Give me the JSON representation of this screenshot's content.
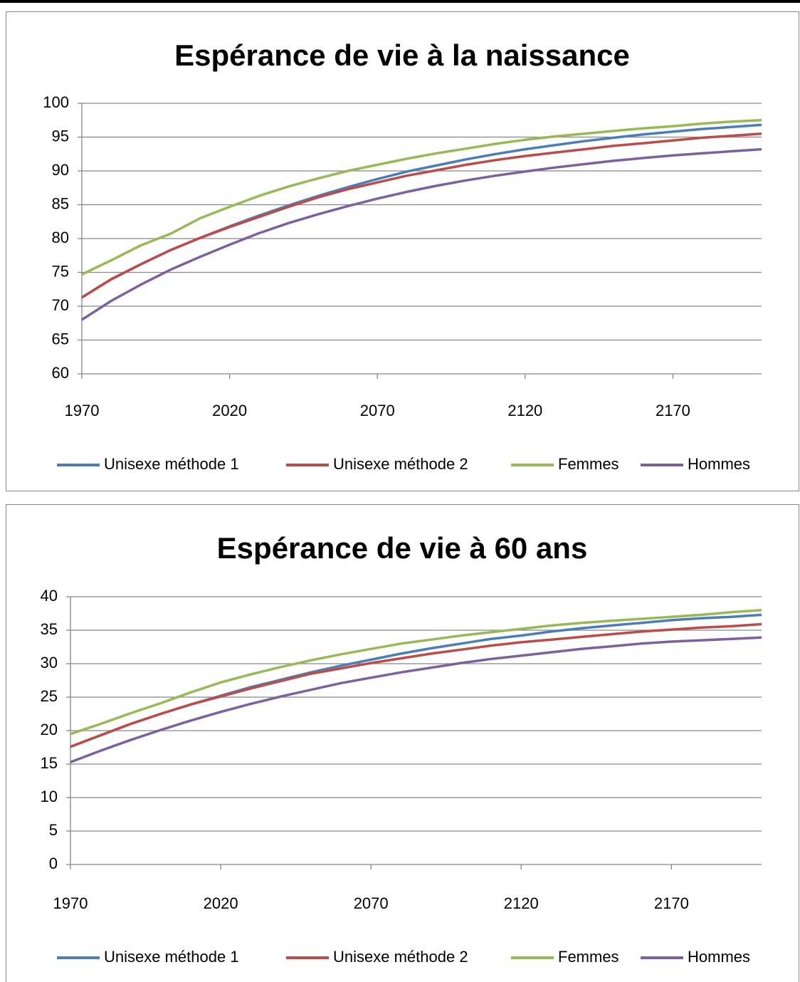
{
  "chart_data": [
    {
      "type": "line",
      "title": "Espérance de vie à la naissance",
      "x": [
        1970,
        1980,
        1990,
        2000,
        2010,
        2020,
        2030,
        2040,
        2050,
        2060,
        2070,
        2080,
        2090,
        2100,
        2110,
        2120,
        2130,
        2140,
        2150,
        2160,
        2170,
        2180,
        2190,
        2200
      ],
      "xlim": [
        1970,
        2200
      ],
      "xticks": [
        1970,
        2020,
        2070,
        2120,
        2170
      ],
      "ylim": [
        60,
        100
      ],
      "yticks": [
        60,
        65,
        70,
        75,
        80,
        85,
        90,
        95,
        100
      ],
      "grid": true,
      "legend": "bottom",
      "series": [
        {
          "name": "Unisexe méthode 1",
          "color": "#4a7ebb",
          "values": [
            71.3,
            74,
            76.2,
            78.3,
            80.1,
            81.8,
            83.4,
            84.9,
            86.3,
            87.6,
            88.8,
            89.9,
            90.8,
            91.7,
            92.5,
            93.2,
            93.8,
            94.4,
            94.9,
            95.4,
            95.8,
            96.2,
            96.5,
            96.8
          ]
        },
        {
          "name": "Unisexe méthode 2",
          "color": "#be4b48",
          "values": [
            71.3,
            74,
            76.2,
            78.3,
            80.1,
            81.7,
            83.2,
            84.7,
            86.1,
            87.3,
            88.3,
            89.3,
            90.1,
            90.9,
            91.6,
            92.2,
            92.7,
            93.2,
            93.7,
            94.1,
            94.5,
            94.9,
            95.2,
            95.5
          ]
        },
        {
          "name": "Femmes",
          "color": "#98b954",
          "values": [
            74.7,
            76.8,
            79,
            80.7,
            83,
            84.7,
            86.3,
            87.7,
            88.9,
            90,
            90.9,
            91.8,
            92.6,
            93.3,
            94,
            94.6,
            95.1,
            95.5,
            95.9,
            96.3,
            96.6,
            97,
            97.3,
            97.5
          ]
        },
        {
          "name": "Hommes",
          "color": "#7d60a0",
          "values": [
            68,
            70.8,
            73.2,
            75.4,
            77.3,
            79.1,
            80.8,
            82.3,
            83.6,
            84.8,
            85.9,
            86.9,
            87.8,
            88.6,
            89.3,
            89.9,
            90.5,
            91,
            91.5,
            91.9,
            92.3,
            92.6,
            92.9,
            93.2
          ]
        }
      ]
    },
    {
      "type": "line",
      "title": "Espérance de vie à 60 ans",
      "x": [
        1970,
        1980,
        1990,
        2000,
        2010,
        2020,
        2030,
        2040,
        2050,
        2060,
        2070,
        2080,
        2090,
        2100,
        2110,
        2120,
        2130,
        2140,
        2150,
        2160,
        2170,
        2180,
        2190,
        2200
      ],
      "xlim": [
        1970,
        2200
      ],
      "xticks": [
        1970,
        2020,
        2070,
        2120,
        2170
      ],
      "ylim": [
        0,
        40
      ],
      "yticks": [
        0,
        5,
        10,
        15,
        20,
        25,
        30,
        35,
        40
      ],
      "grid": true,
      "legend": "bottom",
      "series": [
        {
          "name": "Unisexe méthode 1",
          "color": "#4a7ebb",
          "values": [
            17.6,
            19.3,
            21,
            22.5,
            23.9,
            25.2,
            26.5,
            27.6,
            28.7,
            29.7,
            30.6,
            31.5,
            32.3,
            33,
            33.7,
            34.2,
            34.8,
            35.3,
            35.7,
            36.1,
            36.5,
            36.8,
            37,
            37.3
          ]
        },
        {
          "name": "Unisexe méthode 2",
          "color": "#be4b48",
          "values": [
            17.6,
            19.3,
            21,
            22.5,
            23.9,
            25.1,
            26.3,
            27.4,
            28.5,
            29.3,
            30.1,
            30.8,
            31.5,
            32.1,
            32.7,
            33.2,
            33.6,
            34,
            34.4,
            34.8,
            35.1,
            35.4,
            35.6,
            35.9
          ]
        },
        {
          "name": "Femmes",
          "color": "#98b954",
          "values": [
            19.5,
            21,
            22.6,
            24.1,
            25.7,
            27.2,
            28.4,
            29.5,
            30.5,
            31.4,
            32.2,
            33,
            33.6,
            34.2,
            34.7,
            35.2,
            35.7,
            36.1,
            36.4,
            36.7,
            37,
            37.3,
            37.7,
            38
          ]
        },
        {
          "name": "Hommes",
          "color": "#7d60a0",
          "values": [
            15.3,
            17,
            18.6,
            20.1,
            21.5,
            22.8,
            24,
            25.1,
            26.1,
            27.1,
            27.9,
            28.7,
            29.4,
            30.1,
            30.7,
            31.2,
            31.7,
            32.2,
            32.6,
            33,
            33.3,
            33.5,
            33.7,
            33.9
          ]
        }
      ]
    }
  ]
}
